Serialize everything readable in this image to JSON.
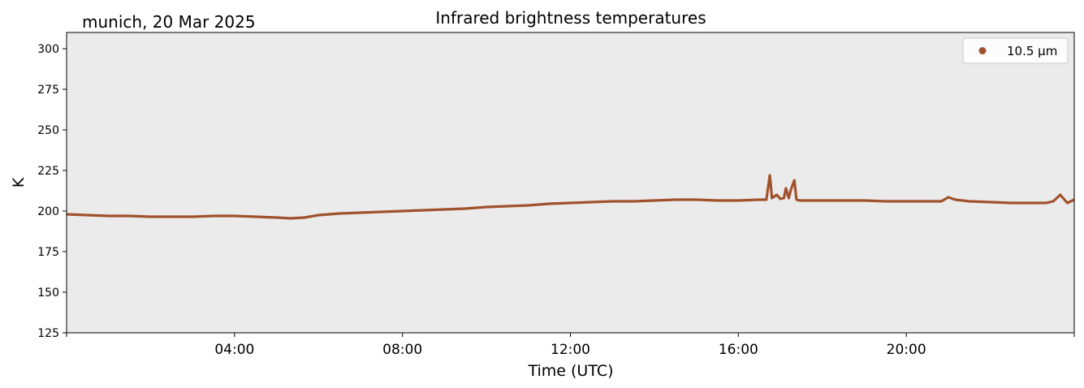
{
  "chart_data": {
    "type": "line",
    "title": "Infrared brightness temperatures",
    "subtitle": "munich, 20 Mar 2025",
    "xlabel": "Time (UTC)",
    "ylabel": "K",
    "xlim": [
      "00:00",
      "24:00"
    ],
    "ylim": [
      125,
      310
    ],
    "x_ticks": [
      "04:00",
      "08:00",
      "12:00",
      "16:00",
      "20:00"
    ],
    "y_ticks": [
      125,
      150,
      175,
      200,
      225,
      250,
      275,
      300
    ],
    "grid": false,
    "background": "#ebebeb",
    "legend": {
      "placement": "top-right",
      "entries": [
        "10.5 µm"
      ]
    },
    "series": [
      {
        "name": "10.5 µm",
        "color": "#a0522d",
        "x": [
          "00:00",
          "00:30",
          "01:00",
          "01:30",
          "02:00",
          "02:30",
          "03:00",
          "03:30",
          "04:00",
          "04:30",
          "05:00",
          "05:20",
          "05:40",
          "06:00",
          "06:30",
          "07:00",
          "07:30",
          "08:00",
          "08:30",
          "09:00",
          "09:30",
          "10:00",
          "10:30",
          "11:00",
          "11:30",
          "12:00",
          "12:30",
          "13:00",
          "13:30",
          "14:00",
          "14:30",
          "15:00",
          "15:30",
          "16:00",
          "16:30",
          "16:40",
          "16:45",
          "16:48",
          "16:55",
          "17:00",
          "17:05",
          "17:08",
          "17:12",
          "17:15",
          "17:20",
          "17:23",
          "17:28",
          "17:32",
          "17:40",
          "18:00",
          "18:30",
          "19:00",
          "19:30",
          "20:00",
          "20:30",
          "20:50",
          "21:00",
          "21:10",
          "21:30",
          "22:00",
          "22:30",
          "23:00",
          "23:20",
          "23:30",
          "23:40",
          "23:50",
          "24:00"
        ],
        "y": [
          198,
          197.5,
          197,
          197,
          196.5,
          196.5,
          196.5,
          197,
          197,
          196.5,
          196,
          195.5,
          196,
          197.5,
          198.5,
          199,
          199.5,
          200,
          200.5,
          201,
          201.5,
          202.5,
          203,
          203.5,
          204.5,
          205,
          205.5,
          206,
          206,
          206.5,
          207,
          207,
          206.5,
          206.5,
          207,
          207,
          222,
          208,
          210,
          207.5,
          208,
          214,
          208,
          213,
          219,
          207,
          206.5,
          206.5,
          206.5,
          206.5,
          206.5,
          206.5,
          206,
          206,
          206,
          206,
          208.5,
          207,
          206,
          205.5,
          205,
          205,
          205,
          206,
          210,
          205,
          207
        ]
      }
    ]
  }
}
